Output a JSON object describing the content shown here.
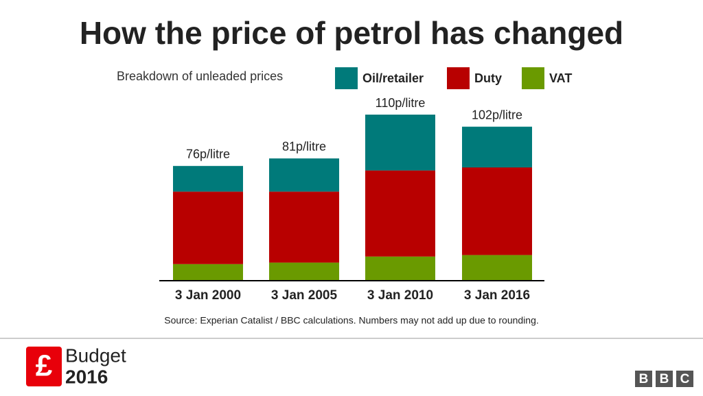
{
  "chart_data": {
    "type": "stacked-bar",
    "title": "How the price of petrol has changed",
    "subtitle": "Breakdown of unleaded prices",
    "categories": [
      "3 Jan 2000",
      "3 Jan 2005",
      "3 Jan 2010",
      "3 Jan 2016"
    ],
    "series": [
      {
        "name": "VAT",
        "color": "#6a9a00",
        "values": [
          11,
          12,
          16,
          17
        ]
      },
      {
        "name": "Duty",
        "color": "#b80000",
        "values": [
          48,
          47,
          57,
          58
        ]
      },
      {
        "name": "Oil/retailer",
        "color": "#007a7a",
        "values": [
          17,
          22,
          37,
          27
        ]
      }
    ],
    "totals": [
      76,
      81,
      110,
      102
    ],
    "total_labels": [
      "76p/litre",
      "81p/litre",
      "110p/litre",
      "102p/litre"
    ],
    "legend_order": [
      "Oil/retailer",
      "Duty",
      "VAT"
    ],
    "source": "Source: Experian Catalist / BBC calculations. Numbers may not add up due to rounding."
  },
  "footer": {
    "brand": "Budget",
    "year": "2016",
    "logo": [
      "B",
      "B",
      "C"
    ]
  }
}
